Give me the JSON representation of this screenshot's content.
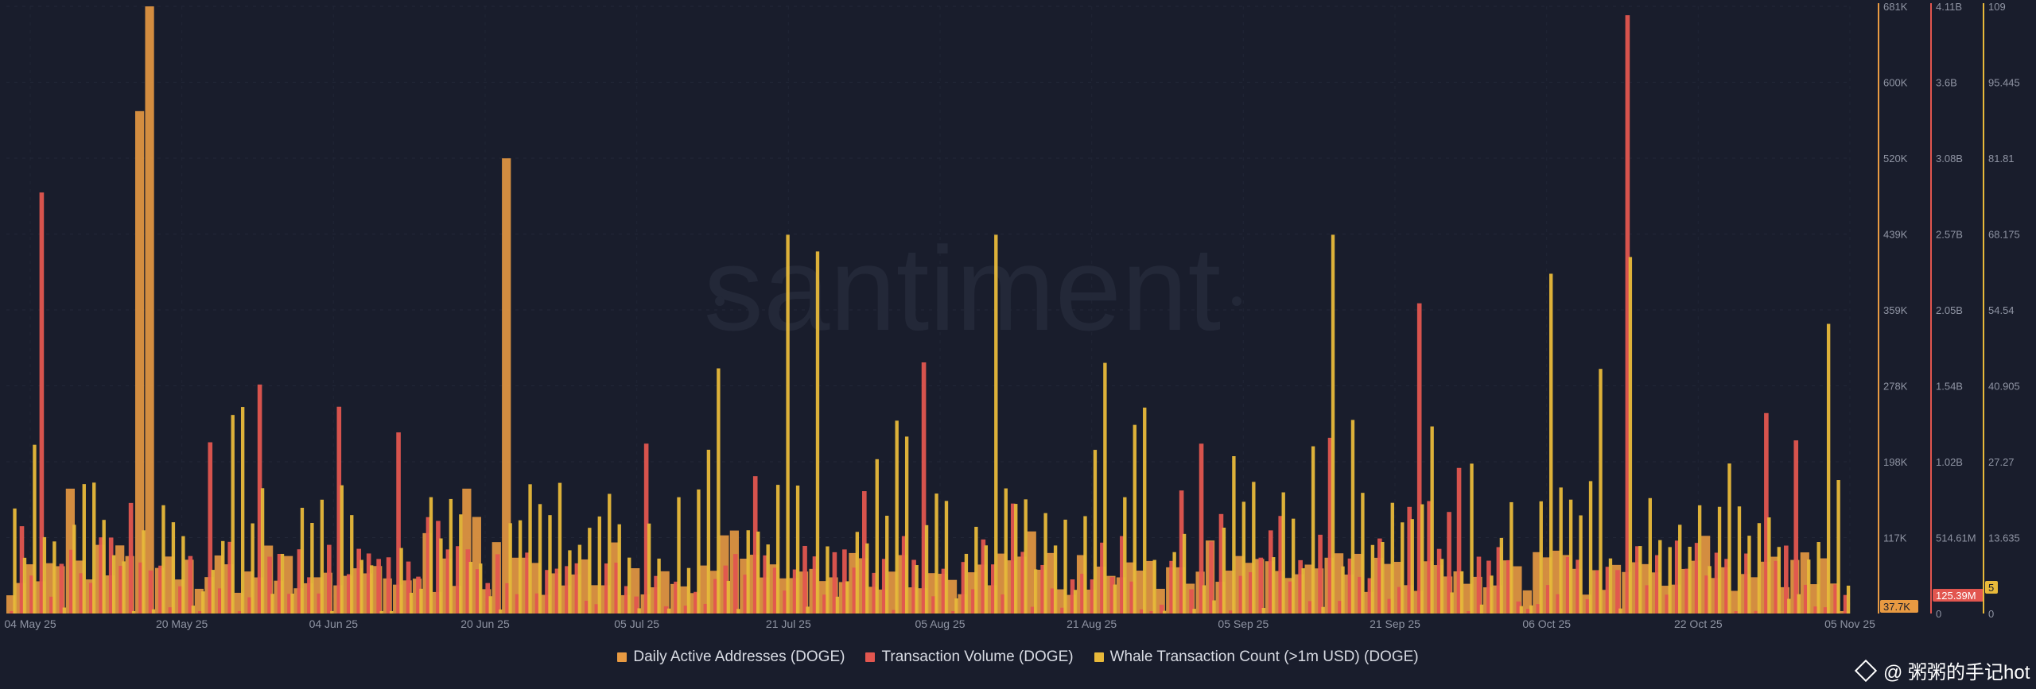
{
  "watermark": "santiment",
  "brand_label": "@ 粥粥的手记hot",
  "colors": {
    "background": "#191d2c",
    "daily_active_addresses": "#e89a42",
    "transaction_volume": "#e2564f",
    "whale_count": "#e8b93a",
    "axis_text": "#8f94a3"
  },
  "chart_data": {
    "type": "bar",
    "x_ticks": [
      "04 May 25",
      "20 May 25",
      "04 Jun 25",
      "20 Jun 25",
      "05 Jul 25",
      "21 Jul 25",
      "05 Aug 25",
      "21 Aug 25",
      "05 Sep 25",
      "21 Sep 25",
      "06 Oct 25",
      "22 Oct 25",
      "05 Nov 25"
    ],
    "x_range": [
      "2025-05-04",
      "2025-11-05"
    ],
    "grid": true,
    "legend_position": "bottom",
    "axes": [
      {
        "series": "Daily Active Addresses (DOGE)",
        "ticks": [
          "681K",
          "600K",
          "520K",
          "439K",
          "359K",
          "278K",
          "198K",
          "117K"
        ],
        "range": [
          37700,
          681000
        ],
        "last_value": "37.7K"
      },
      {
        "series": "Transaction Volume (DOGE)",
        "ticks": [
          "4.11B",
          "3.6B",
          "3.08B",
          "2.57B",
          "2.05B",
          "1.54B",
          "1.02B",
          "514.61M",
          "0"
        ],
        "range": [
          0,
          4110000000
        ],
        "last_value": "125.39M"
      },
      {
        "series": "Whale Transaction Count (>1m USD) (DOGE)",
        "ticks": [
          "109",
          "95.445",
          "81.81",
          "68.175",
          "54.54",
          "40.905",
          "27.27",
          "13.635",
          "0"
        ],
        "range": [
          0,
          109
        ],
        "last_value": "5"
      }
    ],
    "series": [
      {
        "name": "Daily Active Addresses (DOGE)",
        "unit": "addresses",
        "notable_values": [
          {
            "x": "2025-05-10",
            "y": 170000
          },
          {
            "x": "2025-05-17",
            "y": 570000
          },
          {
            "x": "2025-05-18",
            "y": 681000
          },
          {
            "x": "2025-06-19",
            "y": 170000
          },
          {
            "x": "2025-06-20",
            "y": 140000
          },
          {
            "x": "2025-06-23",
            "y": 520000
          },
          {
            "x": "2025-07-01",
            "y": 95000
          },
          {
            "x": "2025-11-05",
            "y": 37700
          }
        ]
      },
      {
        "name": "Transaction Volume (DOGE)",
        "unit": "DOGE",
        "notable_values": [
          {
            "x": "2025-05-07",
            "y": 2850000000
          },
          {
            "x": "2025-05-29",
            "y": 1550000000
          },
          {
            "x": "2025-06-06",
            "y": 1400000000
          },
          {
            "x": "2025-07-07",
            "y": 1150000000
          },
          {
            "x": "2025-08-04",
            "y": 1700000000
          },
          {
            "x": "2025-09-23",
            "y": 2100000000
          },
          {
            "x": "2025-10-14",
            "y": 4050000000
          },
          {
            "x": "2025-11-05",
            "y": 125390000
          }
        ]
      },
      {
        "name": "Whale Transaction Count (>1m USD) (DOGE)",
        "unit": "transactions",
        "notable_values": [
          {
            "x": "2025-07-21",
            "y": 68
          },
          {
            "x": "2025-07-24",
            "y": 65
          },
          {
            "x": "2025-08-11",
            "y": 68
          },
          {
            "x": "2025-08-22",
            "y": 45
          },
          {
            "x": "2025-09-14",
            "y": 68
          },
          {
            "x": "2025-10-06",
            "y": 61
          },
          {
            "x": "2025-10-14",
            "y": 64
          },
          {
            "x": "2025-11-03",
            "y": 52
          },
          {
            "x": "2025-11-05",
            "y": 5
          }
        ]
      }
    ]
  }
}
